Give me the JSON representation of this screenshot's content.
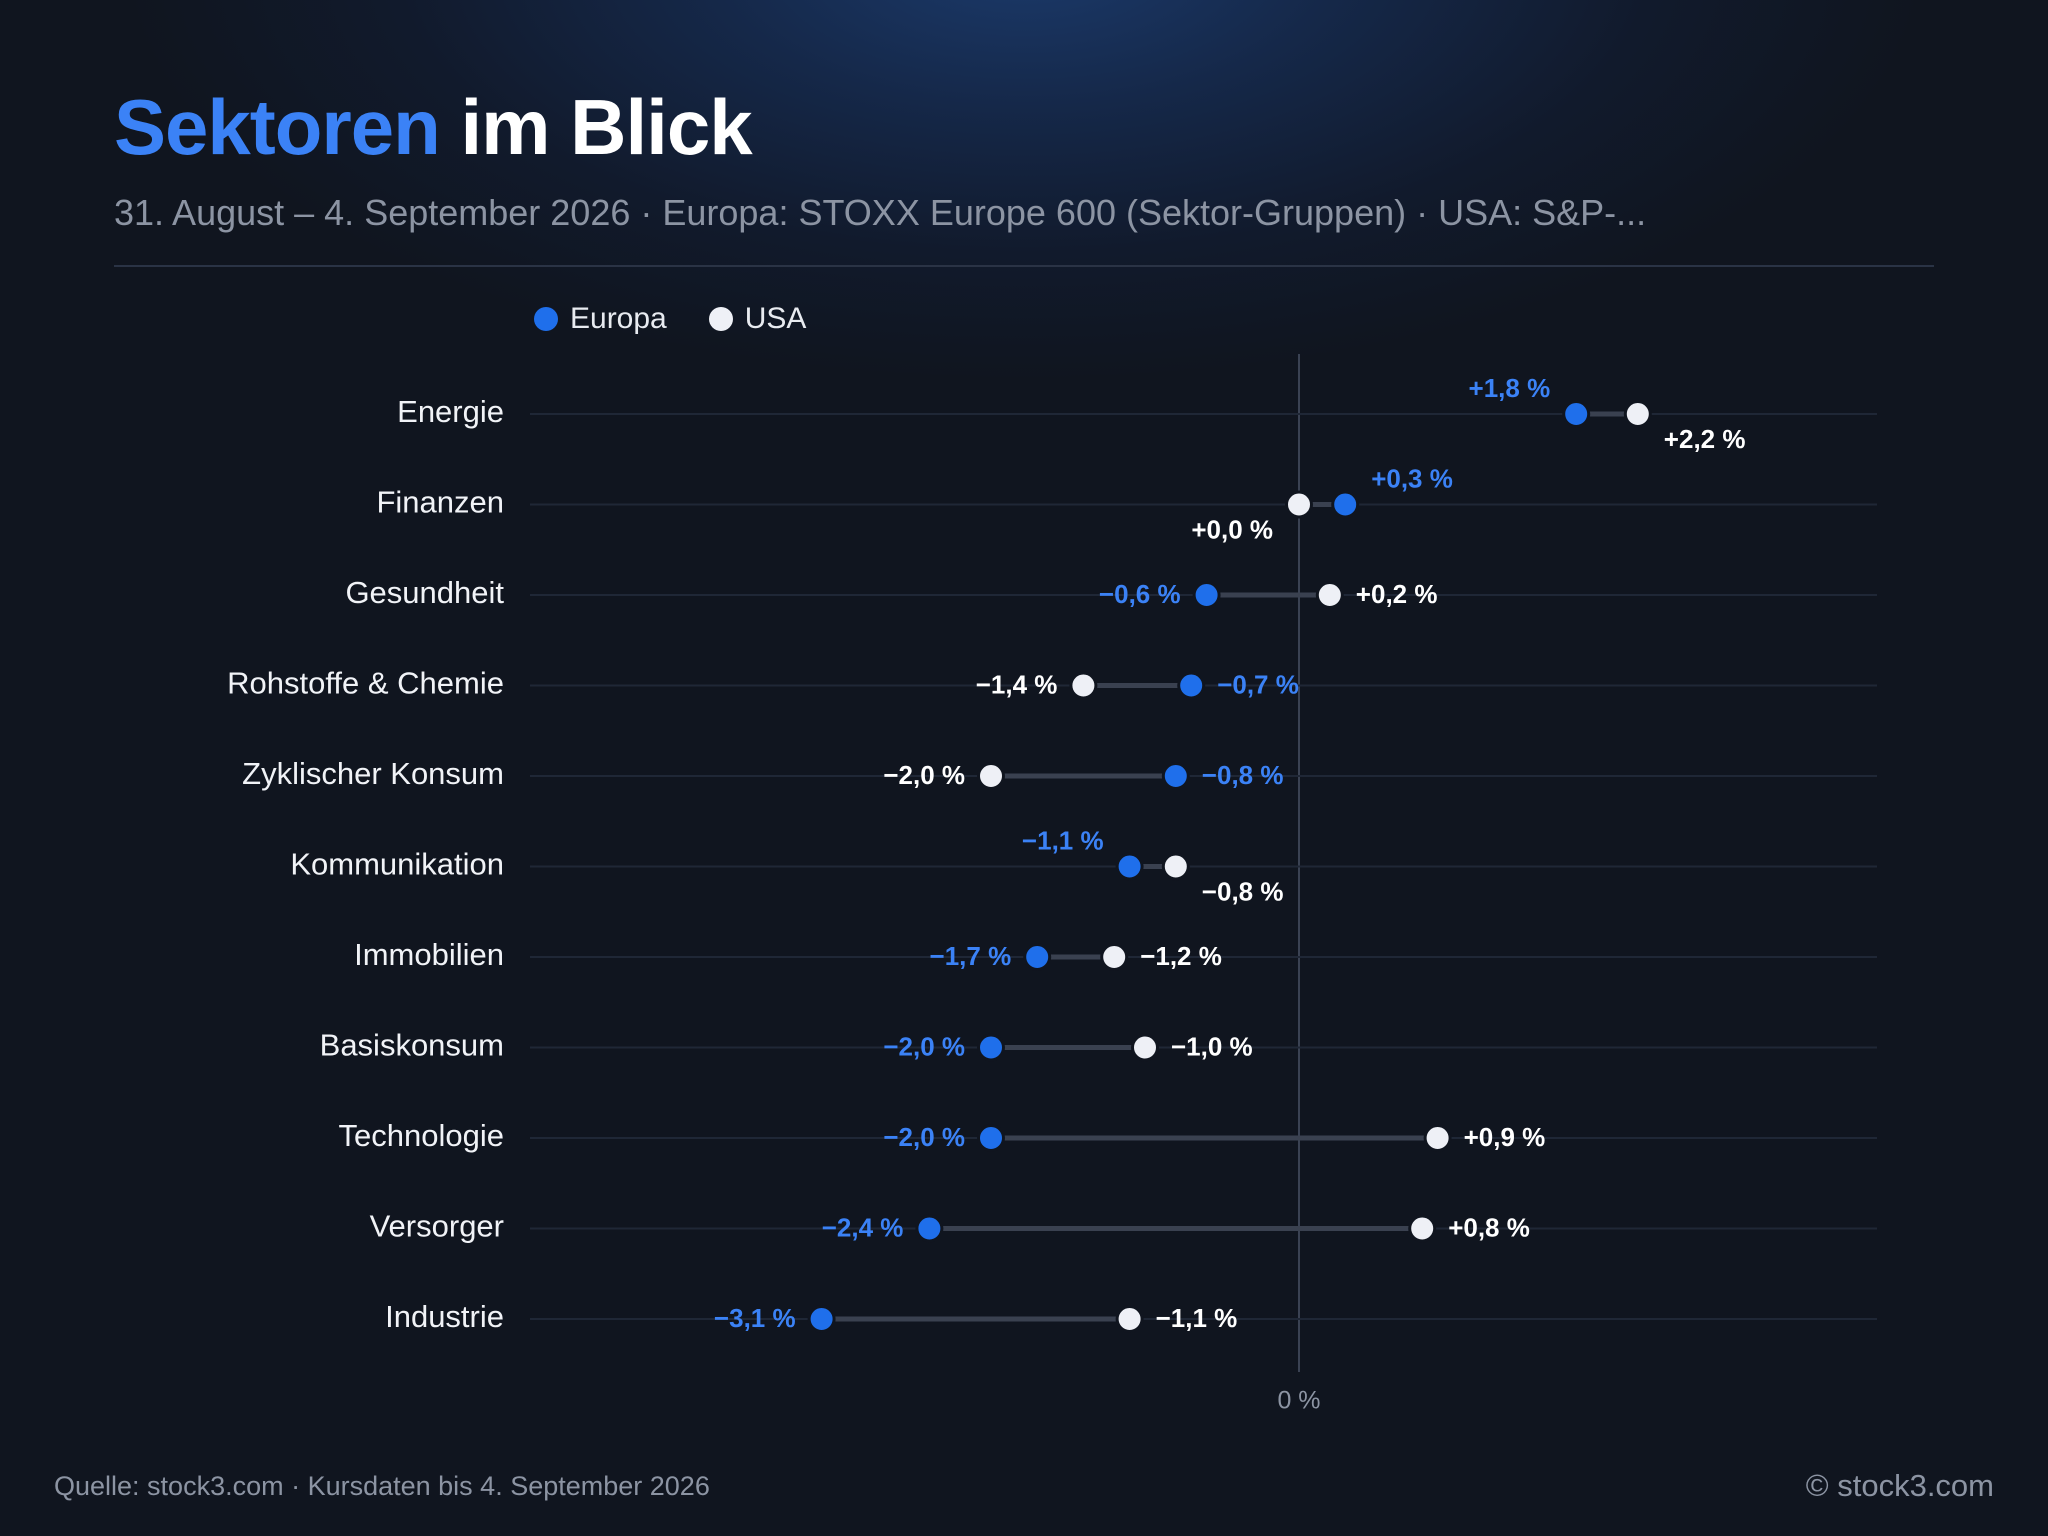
{
  "header": {
    "title_accent": "Sektoren",
    "title_rest": " im Blick",
    "subtitle": "31. August – 4. September 2026 · Europa: STOXX Europe 600 (Sektor-Gruppen) · USA: S&P-..."
  },
  "colors": {
    "europa": "#1f6feb",
    "usa": "#eef0f6",
    "europa_label": "#3b82f6",
    "usa_label": "#ffffff"
  },
  "chart_data": {
    "type": "dumbbell",
    "x_unit": "%",
    "xlim": [
      -3.5,
      2.5
    ],
    "zero_tick_label": "0 %",
    "legend_position": "top-left",
    "series": [
      {
        "name": "Europa"
      },
      {
        "name": "USA"
      }
    ],
    "rows": [
      {
        "label": "Energie",
        "europa": 1.8,
        "usa": 2.2,
        "europa_label": "+1,8 %",
        "usa_label": "+2,2 %"
      },
      {
        "label": "Finanzen",
        "europa": 0.3,
        "usa": 0.0,
        "europa_label": "+0,3 %",
        "usa_label": "+0,0 %"
      },
      {
        "label": "Gesundheit",
        "europa": -0.6,
        "usa": 0.2,
        "europa_label": "−0,6 %",
        "usa_label": "+0,2 %"
      },
      {
        "label": "Rohstoffe & Chemie",
        "europa": -0.7,
        "usa": -1.4,
        "europa_label": "−0,7 %",
        "usa_label": "−1,4 %"
      },
      {
        "label": "Zyklischer Konsum",
        "europa": -0.8,
        "usa": -2.0,
        "europa_label": "−0,8 %",
        "usa_label": "−2,0 %"
      },
      {
        "label": "Kommunikation",
        "europa": -1.1,
        "usa": -0.8,
        "europa_label": "−1,1 %",
        "usa_label": "−0,8 %"
      },
      {
        "label": "Immobilien",
        "europa": -1.7,
        "usa": -1.2,
        "europa_label": "−1,7 %",
        "usa_label": "−1,2 %"
      },
      {
        "label": "Basiskonsum",
        "europa": -2.0,
        "usa": -1.0,
        "europa_label": "−2,0 %",
        "usa_label": "−1,0 %"
      },
      {
        "label": "Technologie",
        "europa": -2.0,
        "usa": 0.9,
        "europa_label": "−2,0 %",
        "usa_label": "+0,9 %"
      },
      {
        "label": "Versorger",
        "europa": -2.4,
        "usa": 0.8,
        "europa_label": "−2,4 %",
        "usa_label": "+0,8 %"
      },
      {
        "label": "Industrie",
        "europa": -3.1,
        "usa": -1.1,
        "europa_label": "−3,1 %",
        "usa_label": "−1,1 %"
      }
    ]
  },
  "footer": {
    "source": "Quelle: stock3.com · Kursdaten bis 4. September 2026",
    "copyright": "© stock3.com"
  }
}
